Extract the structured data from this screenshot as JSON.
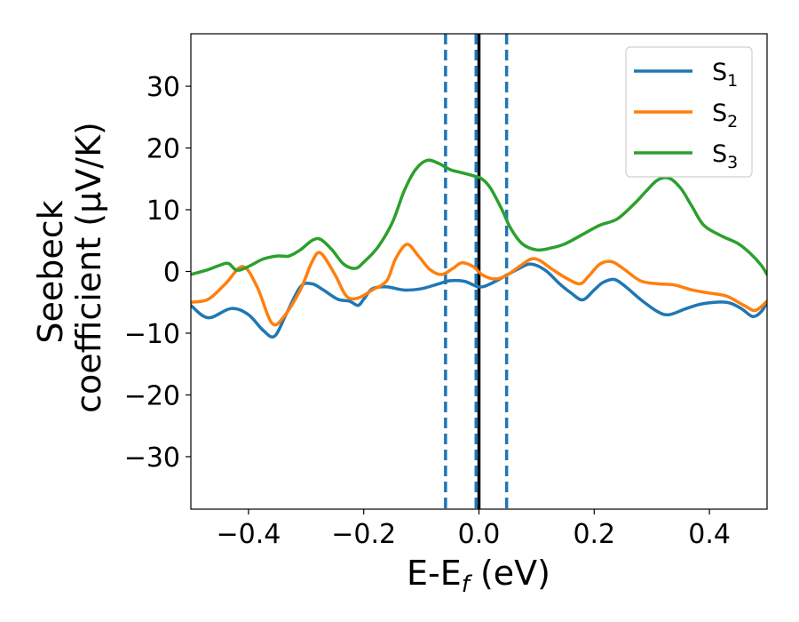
{
  "chart_data": {
    "type": "line",
    "xlabel": "E-E",
    "xlabel_sub": "f",
    "xlabel_unit": " (eV)",
    "ylabel_line1": "Seebeck",
    "ylabel_line2": "coefficient  (μV/K)",
    "xlim": [
      -0.5,
      0.5
    ],
    "ylim": [
      -38.5,
      38.5
    ],
    "xticks": [
      {
        "value": -0.4,
        "label": "−0.4"
      },
      {
        "value": -0.2,
        "label": "−0.2"
      },
      {
        "value": 0.0,
        "label": "0.0"
      },
      {
        "value": 0.2,
        "label": "0.2"
      },
      {
        "value": 0.4,
        "label": "0.4"
      }
    ],
    "yticks": [
      {
        "value": -30,
        "label": "−30"
      },
      {
        "value": -20,
        "label": "−20"
      },
      {
        "value": -10,
        "label": "−10"
      },
      {
        "value": 0,
        "label": "0"
      },
      {
        "value": 10,
        "label": "10"
      },
      {
        "value": 20,
        "label": "20"
      },
      {
        "value": 30,
        "label": "30"
      }
    ],
    "grid": false,
    "legend_position": "top-right",
    "vlines": [
      {
        "x": 0.0,
        "style": "solid",
        "color": "#000000"
      },
      {
        "x": -0.058,
        "style": "dashed",
        "color": "#1f77b4"
      },
      {
        "x": -0.005,
        "style": "dashed",
        "color": "#1f77b4"
      },
      {
        "x": 0.048,
        "style": "dashed",
        "color": "#1f77b4"
      }
    ],
    "series": [
      {
        "name": "S",
        "sub": "1",
        "color": "#1f77b4",
        "x": [
          -0.5,
          -0.47,
          -0.43,
          -0.4,
          -0.375,
          -0.355,
          -0.335,
          -0.31,
          -0.29,
          -0.27,
          -0.245,
          -0.225,
          -0.21,
          -0.2,
          -0.185,
          -0.16,
          -0.13,
          -0.1,
          -0.07,
          -0.05,
          -0.025,
          0.0,
          0.02,
          0.05,
          0.07,
          0.09,
          0.115,
          0.14,
          0.16,
          0.18,
          0.2,
          0.215,
          0.235,
          0.255,
          0.28,
          0.31,
          0.33,
          0.36,
          0.39,
          0.43,
          0.455,
          0.475,
          0.49,
          0.5
        ],
        "values": [
          -5.5,
          -7.5,
          -6.0,
          -7.0,
          -9.5,
          -10.5,
          -7.0,
          -2.5,
          -2.0,
          -3.0,
          -4.5,
          -4.8,
          -5.5,
          -4.5,
          -2.8,
          -2.5,
          -3.0,
          -2.8,
          -2.0,
          -1.5,
          -1.6,
          -2.5,
          -2.0,
          -0.5,
          0.5,
          1.2,
          0.2,
          -2.0,
          -3.5,
          -4.6,
          -3.0,
          -1.8,
          -1.3,
          -2.5,
          -4.5,
          -6.5,
          -7.0,
          -6.0,
          -5.2,
          -5.0,
          -6.0,
          -7.3,
          -6.5,
          -5.0
        ]
      },
      {
        "name": "S",
        "sub": "2",
        "color": "#ff7f0e",
        "x": [
          -0.5,
          -0.47,
          -0.44,
          -0.41,
          -0.385,
          -0.36,
          -0.34,
          -0.31,
          -0.29,
          -0.275,
          -0.25,
          -0.23,
          -0.21,
          -0.185,
          -0.16,
          -0.145,
          -0.125,
          -0.105,
          -0.085,
          -0.065,
          -0.045,
          -0.03,
          -0.01,
          0.005,
          0.025,
          0.045,
          0.07,
          0.09,
          0.105,
          0.125,
          0.15,
          0.175,
          0.19,
          0.21,
          0.23,
          0.25,
          0.28,
          0.31,
          0.34,
          0.37,
          0.4,
          0.43,
          0.46,
          0.48,
          0.5
        ],
        "values": [
          -5.0,
          -4.5,
          -2.0,
          0.8,
          -2.5,
          -8.3,
          -7.5,
          -3.0,
          1.5,
          3.0,
          -0.5,
          -4.0,
          -4.3,
          -3.0,
          -1.5,
          2.0,
          4.4,
          2.5,
          0.3,
          -0.5,
          0.5,
          1.4,
          0.8,
          -0.5,
          -1.2,
          -0.8,
          0.8,
          2.0,
          1.8,
          0.5,
          -1.0,
          -2.0,
          -0.8,
          1.2,
          1.6,
          0.5,
          -1.5,
          -2.0,
          -2.2,
          -3.0,
          -3.5,
          -4.0,
          -5.5,
          -6.3,
          -4.8
        ]
      },
      {
        "name": "S",
        "sub": "3",
        "color": "#2ca02c",
        "x": [
          -0.5,
          -0.47,
          -0.45,
          -0.435,
          -0.42,
          -0.4,
          -0.375,
          -0.35,
          -0.33,
          -0.31,
          -0.29,
          -0.275,
          -0.255,
          -0.235,
          -0.215,
          -0.2,
          -0.175,
          -0.15,
          -0.13,
          -0.11,
          -0.09,
          -0.07,
          -0.05,
          -0.03,
          -0.01,
          0.005,
          0.02,
          0.04,
          0.055,
          0.075,
          0.1,
          0.125,
          0.15,
          0.18,
          0.21,
          0.24,
          0.27,
          0.29,
          0.31,
          0.33,
          0.35,
          0.37,
          0.39,
          0.42,
          0.45,
          0.47,
          0.49,
          0.5
        ],
        "values": [
          -0.5,
          0.3,
          1.0,
          1.3,
          0.2,
          0.8,
          2.0,
          2.5,
          2.5,
          3.5,
          5.0,
          5.2,
          3.5,
          1.2,
          0.5,
          1.5,
          4.0,
          8.0,
          13.0,
          16.5,
          18.0,
          17.5,
          16.5,
          16.0,
          15.5,
          15.0,
          13.5,
          10.0,
          7.0,
          4.5,
          3.5,
          3.8,
          4.5,
          6.0,
          7.5,
          8.5,
          11.0,
          13.0,
          14.8,
          15.1,
          13.5,
          10.5,
          7.5,
          5.8,
          4.5,
          3.0,
          1.0,
          -0.5
        ]
      }
    ]
  }
}
